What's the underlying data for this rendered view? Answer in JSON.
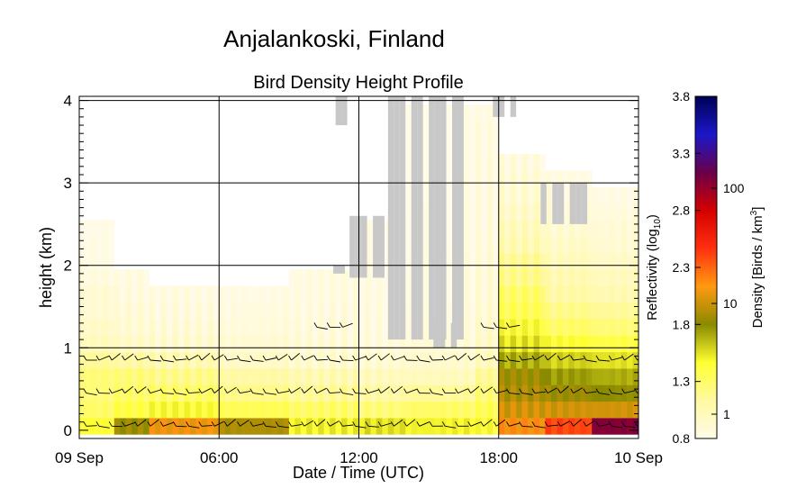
{
  "title": "Anjalankoski, Finland",
  "chart_data": {
    "type": "heatmap",
    "subtitle": "Bird Density Height Profile",
    "xlabel": "Date / Time (UTC)",
    "ylabel": "height (km)",
    "x_ticks": [
      "09 Sep",
      "06:00",
      "12:00",
      "18:00",
      "10 Sep"
    ],
    "x_range_hours": [
      0,
      24
    ],
    "y_ticks": [
      "0",
      "1",
      "2",
      "3",
      "4"
    ],
    "y_range_km": [
      -0.1,
      4.05
    ],
    "grid": true,
    "colorbar": {
      "left_label": "Reflectivity (log",
      "left_label_sub": "10",
      "left_label_end": ")",
      "right_label": "Density [Birds / km",
      "right_label_sup": "3",
      "right_label_end": "]",
      "reflectivity_ticks": [
        "0.8",
        "1.3",
        "1.8",
        "2.3",
        "2.8",
        "3.3",
        "3.8"
      ],
      "density_ticks": [
        "1",
        "10",
        "100"
      ],
      "range": [
        0.8,
        3.8
      ],
      "colors": [
        "#fffbe8",
        "#fff9a0",
        "#ffff30",
        "#8a8a00",
        "#ff9a10",
        "#ff3010",
        "#d40000",
        "#6a004a",
        "#1a18c8",
        "#000055"
      ]
    },
    "no_data_color": "#c8c8c8",
    "height_levels_km": [
      0.05,
      0.25,
      0.45,
      0.65,
      0.85,
      1.05,
      1.25,
      1.45,
      1.65,
      1.85,
      2.05,
      2.25,
      2.45,
      2.65,
      2.85,
      3.05,
      3.25,
      3.45,
      3.65,
      3.85
    ],
    "profiles": [
      {
        "t_range": [
          0,
          1.5
        ],
        "reflectivity_log10": [
          1.45,
          1.3,
          1.25,
          1.25,
          1.15,
          1.0,
          0.95,
          0.9,
          0.9,
          0.85,
          0.82,
          0.82,
          0.8,
          0,
          0,
          0,
          0,
          0,
          0,
          0
        ]
      },
      {
        "t_range": [
          1.5,
          3
        ],
        "reflectivity_log10": [
          1.85,
          1.4,
          1.3,
          1.25,
          1.1,
          0.95,
          0.9,
          0.88,
          0.85,
          0.82,
          0,
          0,
          0,
          0,
          0,
          0,
          0,
          0,
          0,
          0
        ]
      },
      {
        "t_range": [
          3,
          6
        ],
        "reflectivity_log10": [
          2.1,
          1.45,
          1.3,
          1.2,
          1.05,
          0.92,
          0.88,
          0.85,
          0.82,
          0,
          0,
          0,
          0,
          0,
          0,
          0,
          0,
          0,
          0,
          0
        ]
      },
      {
        "t_range": [
          6,
          9
        ],
        "reflectivity_log10": [
          1.9,
          1.35,
          1.2,
          1.1,
          0.95,
          0.9,
          0.86,
          0.84,
          0.82,
          0,
          0,
          0,
          0,
          0,
          0,
          0,
          0,
          0,
          0,
          0
        ]
      },
      {
        "t_range": [
          9,
          12
        ],
        "reflectivity_log10": [
          1.5,
          1.3,
          1.15,
          1.05,
          0.92,
          0.88,
          0.86,
          0.84,
          0.82,
          0.82,
          0,
          0,
          0,
          0,
          0,
          0,
          0,
          0,
          0,
          0
        ]
      },
      {
        "t_range": [
          12,
          14
        ],
        "reflectivity_log10": [
          1.55,
          1.25,
          1.1,
          1.0,
          0.9,
          0.86,
          0.84,
          0.83,
          0.82,
          0.82,
          0.82,
          0.8,
          0.8,
          0,
          0,
          0,
          0,
          0,
          0,
          0
        ]
      },
      {
        "t_range": [
          14,
          17
        ],
        "reflectivity_log10": [
          1.5,
          1.3,
          1.15,
          1.0,
          0.92,
          0.88,
          0.86,
          0.85,
          0.84,
          0.84,
          0.83,
          0.82,
          0.82,
          0.82,
          0.81,
          0.81,
          0.8,
          0.8,
          0.8,
          0.8
        ]
      },
      {
        "t_range": [
          17,
          18
        ],
        "reflectivity_log10": [
          1.45,
          1.35,
          1.25,
          1.15,
          1.0,
          0.95,
          0.92,
          0.9,
          0.88,
          0.88,
          0.87,
          0.86,
          0.85,
          0.85,
          0.84,
          0.84,
          0.83,
          0.82,
          0.82,
          0.8
        ]
      },
      {
        "t_range": [
          18,
          20
        ],
        "reflectivity_log10": [
          2.15,
          2.0,
          1.9,
          1.85,
          1.7,
          1.55,
          1.45,
          1.35,
          1.3,
          1.2,
          1.15,
          1.05,
          1.0,
          0.95,
          0.9,
          0.88,
          0.85,
          0,
          0,
          0
        ]
      },
      {
        "t_range": [
          20,
          22
        ],
        "reflectivity_log10": [
          2.4,
          2.0,
          1.85,
          1.75,
          1.6,
          1.45,
          1.3,
          1.2,
          1.1,
          1.05,
          1.0,
          0.95,
          0.9,
          0.88,
          0.85,
          0.82,
          0,
          0,
          0,
          0
        ]
      },
      {
        "t_range": [
          22,
          24
        ],
        "reflectivity_log10": [
          3.05,
          2.0,
          1.8,
          1.7,
          1.55,
          1.4,
          1.25,
          1.15,
          1.05,
          1.0,
          0.95,
          0.9,
          0.88,
          0.85,
          0.82,
          0,
          0,
          0,
          0,
          0
        ]
      }
    ],
    "no_data_regions": [
      {
        "t_range": [
          10.9,
          11.3
        ],
        "h_range_km": [
          1.9,
          2.0
        ]
      },
      {
        "t_range": [
          11.6,
          13.0
        ],
        "h_range_km": [
          1.85,
          2.6
        ]
      },
      {
        "t_range": [
          11.0,
          11.6
        ],
        "h_range_km": [
          3.7,
          4.05
        ]
      },
      {
        "t_range": [
          13.0,
          16.5
        ],
        "h_range_km": [
          1.1,
          4.05
        ]
      },
      {
        "t_range": [
          15.2,
          16.2
        ],
        "h_range_km": [
          1.0,
          1.3
        ]
      },
      {
        "t_range": [
          19.8,
          21.6
        ],
        "h_range_km": [
          2.5,
          3.0
        ]
      },
      {
        "t_range": [
          17.5,
          18.6
        ],
        "h_range_km": [
          3.8,
          4.05
        ]
      }
    ],
    "wind_levels_km": [
      0.05,
      0.45,
      0.85,
      1.25
    ]
  }
}
